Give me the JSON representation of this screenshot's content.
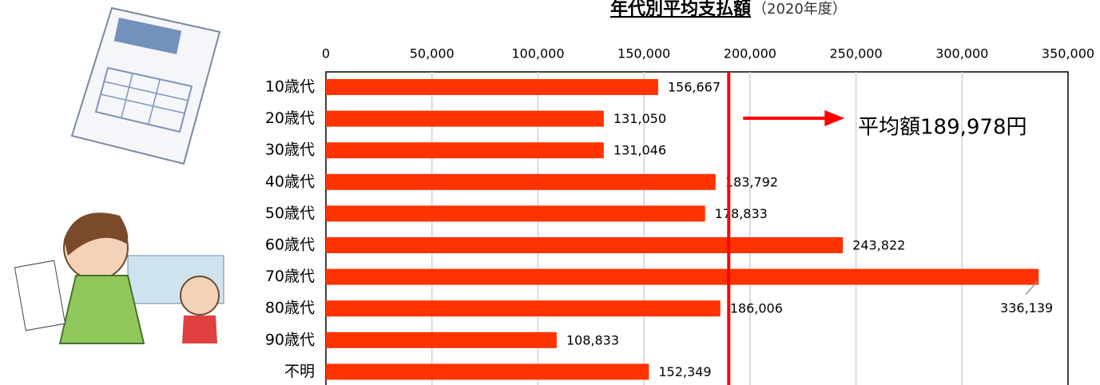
{
  "chart_data": {
    "type": "bar",
    "orientation": "horizontal",
    "title": "年代別平均支払額",
    "subtitle": "（2020年度）",
    "categories": [
      "10歳代",
      "20歳代",
      "30歳代",
      "40歳代",
      "50歳代",
      "60歳代",
      "70歳代",
      "80歳代",
      "90歳代",
      "不明"
    ],
    "values": [
      156667,
      131050,
      131046,
      183792,
      178833,
      243822,
      336139,
      186006,
      108833,
      152349
    ],
    "value_labels": [
      "156,667",
      "131,050",
      "131,046",
      "183,792",
      "178,833",
      "243,822",
      "336,139",
      "186,006",
      "108,833",
      "152,349"
    ],
    "color": "#ff3300",
    "xlim": [
      0,
      350000
    ],
    "xticks": [
      0,
      {
        "value": 50000,
        "label": "50,000"
      },
      {
        "value": 100000,
        "label": "100,000"
      },
      {
        "value": 150000,
        "label": "150,000"
      },
      {
        "value": 200000,
        "label": "200,000"
      },
      {
        "value": 250000,
        "label": "250,000"
      },
      {
        "value": 300000,
        "label": "300,000"
      },
      {
        "value": 350000,
        "label": "350,000"
      }
    ],
    "grid": true,
    "average": 189978,
    "average_color": "#ff0000",
    "annotation": "平均額189,978円"
  }
}
